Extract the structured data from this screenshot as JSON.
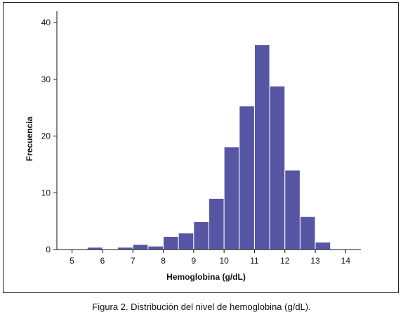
{
  "caption": "Figura 2. Distribución del nivel de hemoglobina (g/dL).",
  "chart_data": {
    "type": "bar",
    "title": "",
    "xlabel": "Hemoglobina (g/dL)",
    "ylabel": "Frecuencia",
    "xlim": [
      4.5,
      14.5
    ],
    "ylim": [
      0,
      42
    ],
    "x_ticks": [
      5,
      6,
      7,
      8,
      9,
      10,
      11,
      12,
      13,
      14
    ],
    "y_ticks": [
      0,
      10,
      20,
      30,
      40
    ],
    "bin_width": 0.5,
    "bin_starts": [
      5.0,
      5.5,
      6.0,
      6.5,
      7.0,
      7.5,
      8.0,
      8.5,
      9.0,
      9.5,
      10.0,
      10.5,
      11.0,
      11.5,
      12.0,
      12.5,
      13.0,
      13.5
    ],
    "values": [
      0,
      0.4,
      0,
      0.4,
      0.9,
      0.6,
      2.3,
      2.9,
      4.9,
      9.0,
      18.1,
      25.3,
      36.1,
      28.8,
      14.0,
      5.8,
      1.3,
      0
    ],
    "bar_color": "#5756a4",
    "bar_edge_color": "#ffffff",
    "grid": false,
    "legend": "none"
  }
}
